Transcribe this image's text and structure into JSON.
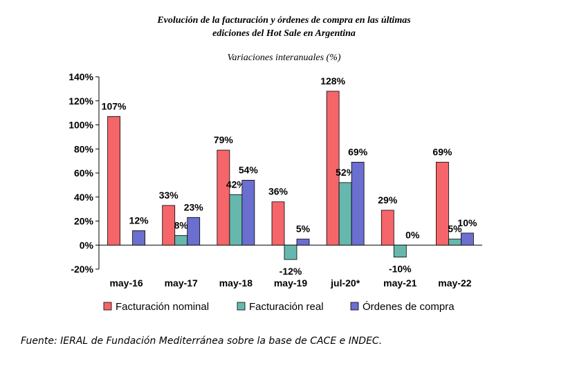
{
  "header": {
    "title_line1": "Evolución de la facturación y órdenes de compra en las últimas",
    "title_line2": "ediciones del Hot Sale en Argentina",
    "subtitle": "Variaciones interanuales (%)"
  },
  "footer": {
    "source": "Fuente: IERAL de Fundación Mediterránea sobre la base de CACE e INDEC."
  },
  "chart_data": {
    "type": "bar",
    "title": "Evolución de la facturación y órdenes de compra en las últimas ediciones del Hot Sale en Argentina",
    "subtitle": "Variaciones interanuales (%)",
    "categories": [
      "may-16",
      "may-17",
      "may-18",
      "may-19",
      "jul-20*",
      "may-21",
      "may-22"
    ],
    "series": [
      {
        "name": "Facturación nominal",
        "color": "#f4666a",
        "values": [
          107,
          33,
          79,
          36,
          128,
          29,
          69
        ],
        "labels": [
          "107%",
          "33%",
          "79%",
          "36%",
          "128%",
          "29%",
          "69%"
        ]
      },
      {
        "name": "Facturación real",
        "color": "#66b8ae",
        "values": [
          null,
          8,
          42,
          -12,
          52,
          -10,
          5
        ],
        "labels": [
          "",
          "8%",
          "42%",
          "-12%",
          "52%",
          "-10%",
          "5%"
        ]
      },
      {
        "name": "Órdenes de compra",
        "color": "#6b6fcf",
        "values": [
          12,
          23,
          54,
          5,
          69,
          0,
          10
        ],
        "labels": [
          "12%",
          "23%",
          "54%",
          "5%",
          "69%",
          "0%",
          "10%"
        ]
      }
    ],
    "yticks": [
      "140%",
      "120%",
      "100%",
      "80%",
      "60%",
      "40%",
      "20%",
      "0%",
      "-20%"
    ],
    "ytick_values": [
      140,
      120,
      100,
      80,
      60,
      40,
      20,
      0,
      -20
    ],
    "ylim": [
      -20,
      140
    ],
    "grid": false,
    "legend_position": "bottom"
  }
}
